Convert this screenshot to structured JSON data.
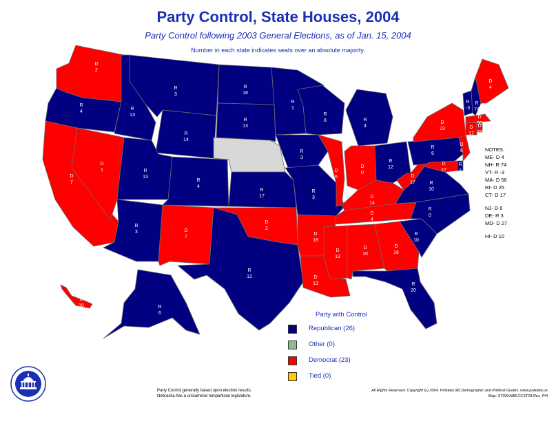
{
  "title": "Party Control, State Houses, 2004",
  "subtitle": "Party Control following 2003 General Elections, as of Jan. 15, 2004",
  "subtitle2": "Number in each state indicates seats over an absolute majority.",
  "colors": {
    "republican": "#000080",
    "democrat": "#ff0000",
    "other": "#8fbc8f",
    "tied": "#ffcc00",
    "unicameral": "#d8d8d8"
  },
  "states": [
    {
      "id": "WA",
      "party": "D",
      "label": "D 2"
    },
    {
      "id": "OR",
      "party": "R",
      "label": "R 4"
    },
    {
      "id": "CA",
      "party": "D",
      "label": "D 7"
    },
    {
      "id": "NV",
      "party": "D",
      "label": "D 1"
    },
    {
      "id": "ID",
      "party": "R",
      "label": "R 13"
    },
    {
      "id": "MT",
      "party": "R",
      "label": "R 3"
    },
    {
      "id": "WY",
      "party": "R",
      "label": "R 14"
    },
    {
      "id": "UT",
      "party": "R",
      "label": "R 13"
    },
    {
      "id": "AZ",
      "party": "R",
      "label": "R 3"
    },
    {
      "id": "NM",
      "party": "D",
      "label": "D 7"
    },
    {
      "id": "CO",
      "party": "R",
      "label": "R 4"
    },
    {
      "id": "ND",
      "party": "R",
      "label": "R 18"
    },
    {
      "id": "SD",
      "party": "R",
      "label": "R 13"
    },
    {
      "id": "NE",
      "party": "U",
      "label": ""
    },
    {
      "id": "KS",
      "party": "R",
      "label": "R 17"
    },
    {
      "id": "OK",
      "party": "D",
      "label": "D 2"
    },
    {
      "id": "TX",
      "party": "R",
      "label": "R 12"
    },
    {
      "id": "MN",
      "party": "R",
      "label": "R 1"
    },
    {
      "id": "IA",
      "party": "R",
      "label": "R 3"
    },
    {
      "id": "MO",
      "party": "R",
      "label": "R 3"
    },
    {
      "id": "AR",
      "party": "D",
      "label": "D 18"
    },
    {
      "id": "LA",
      "party": "D",
      "label": "D 13"
    },
    {
      "id": "WI",
      "party": "R",
      "label": "R 8"
    },
    {
      "id": "IL",
      "party": "D",
      "label": "D 6"
    },
    {
      "id": "MI",
      "party": "R",
      "label": "R 4"
    },
    {
      "id": "IN",
      "party": "D",
      "label": "D 0"
    },
    {
      "id": "OH",
      "party": "R",
      "label": "R 12"
    },
    {
      "id": "KY",
      "party": "D",
      "label": "D 14"
    },
    {
      "id": "TN",
      "party": "D",
      "label": "D 4"
    },
    {
      "id": "MS",
      "party": "D",
      "label": "D 13"
    },
    {
      "id": "AL",
      "party": "D",
      "label": "D 10"
    },
    {
      "id": "GA",
      "party": "D",
      "label": "D 16"
    },
    {
      "id": "FL",
      "party": "R",
      "label": "R 20"
    },
    {
      "id": "SC",
      "party": "R",
      "label": "R 10"
    },
    {
      "id": "NC",
      "party": "R",
      "label": "R 0"
    },
    {
      "id": "VA",
      "party": "R",
      "label": "R 10"
    },
    {
      "id": "WV",
      "party": "D",
      "label": "D 17"
    },
    {
      "id": "PA",
      "party": "R",
      "label": "R 6"
    },
    {
      "id": "NY",
      "party": "D",
      "label": "D 23"
    },
    {
      "id": "NJ",
      "party": "D",
      "label": "D 6"
    },
    {
      "id": "DE",
      "party": "R",
      "label": "R 3"
    },
    {
      "id": "MD",
      "party": "D",
      "label": "D 27"
    },
    {
      "id": "VT",
      "party": "R",
      "label": "R -3"
    },
    {
      "id": "NH",
      "party": "R",
      "label": "R 74"
    },
    {
      "id": "ME",
      "party": "D",
      "label": "D 4"
    },
    {
      "id": "MA",
      "party": "D",
      "label": "D 56"
    },
    {
      "id": "CT",
      "party": "D",
      "label": "D 17"
    },
    {
      "id": "RI",
      "party": "D",
      "label": "D 25"
    },
    {
      "id": "AK",
      "party": "R",
      "label": "R 6"
    },
    {
      "id": "HI",
      "party": "D",
      "label": "D 10"
    }
  ],
  "notes": {
    "heading": "NOTES:",
    "group1": [
      "ME- D 4",
      "NH- R 74",
      "VT- R -3",
      "MA- D 56",
      "RI- D 25",
      "CT- D 17"
    ],
    "group2": [
      "NJ- D 6",
      "DE- R 3",
      "MD- D 27"
    ],
    "group3": [
      "HI- D 10"
    ]
  },
  "legend": {
    "title": "Party with Control",
    "items": [
      {
        "label": "Republican (26)",
        "color": "#000080"
      },
      {
        "label": "Other (0)",
        "color": "#8fbc8f"
      },
      {
        "label": "Democrat (23)",
        "color": "#ff0000"
      },
      {
        "label": "Tied (0)",
        "color": "#ffcc00"
      }
    ]
  },
  "footnote": [
    "Party Control generally based upon election results.",
    "Nebraska has a unicameral nonpartisan legislature."
  ],
  "rights": [
    "All Rights Reserved. Copyright (c) 2004. Polidata (R) Demographic and Political Guides. www.polidata.us",
    "Map: ST03XA8B.CCST03.Res_P4f"
  ]
}
